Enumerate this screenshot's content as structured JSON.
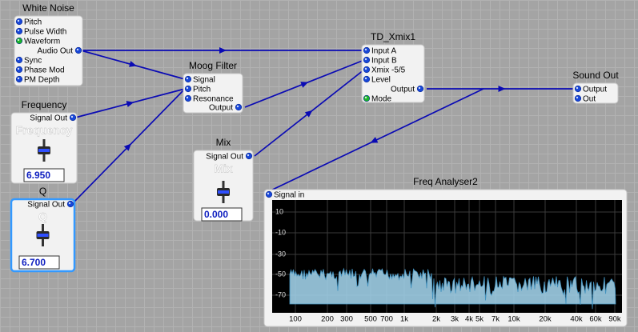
{
  "modules": [
    {
      "title": "White Noise",
      "pins": [
        "Pitch",
        "Pulse Width",
        "Waveform",
        "Audio Out",
        "Sync",
        "Phase Mod",
        "PM Depth"
      ]
    },
    {
      "title": "Moog Filter",
      "pins": [
        "Signal",
        "Pitch",
        "Resonance",
        "Output"
      ]
    },
    {
      "title": "TD_Xmix1",
      "pins": [
        "Input A",
        "Input B",
        "Xmix -5/5",
        "Level",
        "Output",
        "Mode"
      ]
    },
    {
      "title": "Sound Out",
      "pins": [
        "Output",
        "Out"
      ]
    },
    {
      "title": "Frequency",
      "pins": [
        "Signal Out"
      ],
      "label": "Frequency",
      "value": "6.950"
    },
    {
      "title": "Q",
      "pins": [
        "Signal Out"
      ],
      "label": "Q",
      "value": "6.700"
    },
    {
      "title": "Mix",
      "pins": [
        "Signal Out"
      ],
      "label": "Mix",
      "value": "0.000"
    },
    {
      "title": "Freq Analyser2",
      "pins": [
        "Signal in"
      ],
      "y_labels": [
        "10",
        "-10",
        "-30",
        "-50",
        "-70"
      ],
      "x_labels": [
        "100",
        "200",
        "300",
        "500",
        "700",
        "1k",
        "2k",
        "3k",
        "4k",
        "5k",
        "7k",
        "10k",
        "20k",
        "40k",
        "60k",
        "90k"
      ]
    }
  ]
}
